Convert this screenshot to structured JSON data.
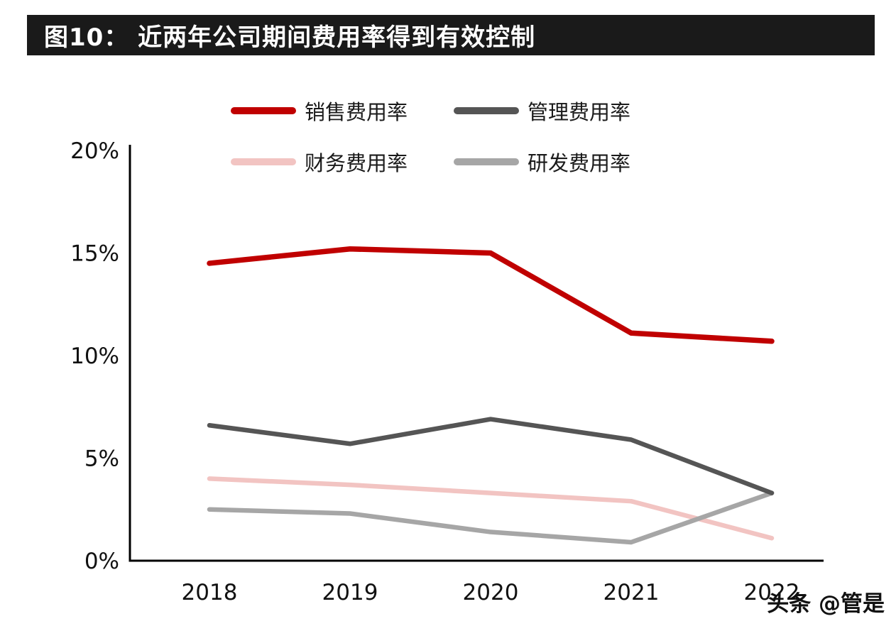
{
  "title": "图10：  近两年公司期间费用率得到有效控制",
  "watermark": "头条 @管是",
  "colors": {
    "title_bar_bg": "#1a1a1a",
    "title_text": "#ffffff",
    "axis": "#000000",
    "tick_text": "#111111"
  },
  "chart_data": {
    "type": "line",
    "categories": [
      "2018",
      "2019",
      "2020",
      "2021",
      "2022"
    ],
    "series": [
      {
        "name": "销售费用率",
        "color": "#c00000",
        "width": 7.5,
        "values": [
          14.5,
          15.2,
          15.0,
          11.1,
          10.7
        ]
      },
      {
        "name": "管理费用率",
        "color": "#555555",
        "width": 6.5,
        "values": [
          6.6,
          5.7,
          6.9,
          5.9,
          3.3
        ]
      },
      {
        "name": "财务费用率",
        "color": "#f2c4c2",
        "width": 6.5,
        "values": [
          4.0,
          3.7,
          3.3,
          2.9,
          1.1
        ]
      },
      {
        "name": "研发费用率",
        "color": "#a6a6a6",
        "width": 6.5,
        "values": [
          2.5,
          2.3,
          1.4,
          0.9,
          3.3
        ]
      }
    ],
    "title": "图10：  近两年公司期间费用率得到有效控制",
    "xlabel": "",
    "ylabel": "",
    "ylim": [
      0,
      20
    ],
    "yticks": [
      0,
      5,
      10,
      15,
      20
    ],
    "ytick_labels": [
      "0%",
      "5%",
      "10%",
      "15%",
      "20%"
    ],
    "grid": false,
    "legend_position": "top",
    "legend_rows": [
      [
        0,
        1
      ],
      [
        2,
        3
      ]
    ]
  }
}
